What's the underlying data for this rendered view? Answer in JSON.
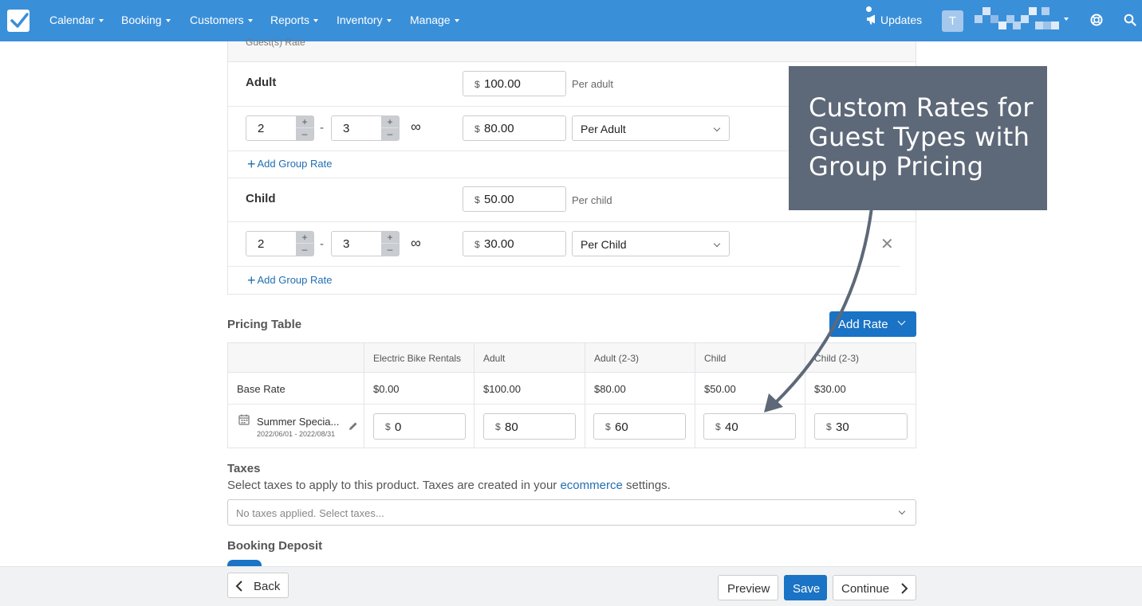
{
  "nav": {
    "items": [
      {
        "label": "Calendar"
      },
      {
        "label": "Booking"
      },
      {
        "label": "Customers"
      },
      {
        "label": "Reports"
      },
      {
        "label": "Inventory"
      },
      {
        "label": "Manage"
      }
    ],
    "updates_label": "Updates",
    "avatar_initial": "T",
    "brand_color": "#3a8fd9"
  },
  "rates_panel": {
    "header": "Guest(s) Rate",
    "adult": {
      "title": "Adult",
      "currency": "$",
      "rate": "100.00",
      "per_label": "Per adult",
      "group": {
        "min": "2",
        "max": "3",
        "sep": "-",
        "infinity": "∞",
        "rate": "80.00",
        "unit": "Per Adult"
      },
      "add_group_label": "Add Group Rate"
    },
    "child": {
      "title": "Child",
      "currency": "$",
      "rate": "50.00",
      "per_label": "Per child",
      "group": {
        "min": "2",
        "max": "3",
        "sep": "-",
        "infinity": "∞",
        "rate": "30.00",
        "unit": "Per Child"
      },
      "add_group_label": "Add Group Rate"
    },
    "stepper_up": "+",
    "stepper_down": "–"
  },
  "pricing_table": {
    "title": "Pricing Table",
    "add_rate_label": "Add Rate",
    "columns": [
      "Electric Bike Rentals",
      "Adult",
      "Adult (2-3)",
      "Child",
      "Child (2-3)"
    ],
    "base_rate": {
      "label": "Base Rate",
      "values": [
        "$0.00",
        "$100.00",
        "$80.00",
        "$50.00",
        "$30.00"
      ]
    },
    "season": {
      "name": "Summer Specia...",
      "dates": "2022/06/01 - 2022/08/31",
      "currency": "$",
      "values": [
        "0",
        "80",
        "60",
        "40",
        "30"
      ]
    }
  },
  "taxes": {
    "title": "Taxes",
    "desc_before": "Select taxes to apply to this product. Taxes are created in your ",
    "desc_link": "ecommerce",
    "desc_after": " settings.",
    "placeholder": "No taxes applied. Select taxes..."
  },
  "deposit": {
    "title": "Booking Deposit",
    "toggle_on": true
  },
  "footer": {
    "back_label": "Back",
    "preview_label": "Preview",
    "save_label": "Save",
    "continue_label": "Continue"
  },
  "annotation": {
    "text": "Custom Rates for Guest Types with Group Pricing"
  }
}
